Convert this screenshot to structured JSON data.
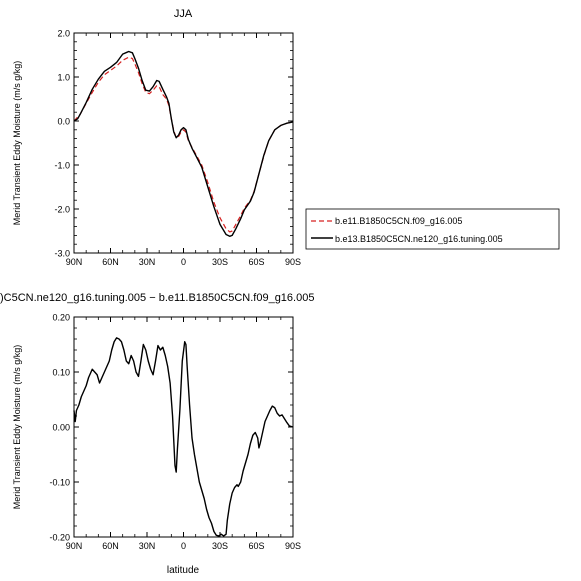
{
  "charts": [
    {
      "type": "line",
      "title": "JJA",
      "xlabel": "",
      "ylabel": "Merid Transient Eddy Moisture (m/s g/kg)",
      "x_ticks": [
        "90N",
        "60N",
        "30N",
        "0",
        "30S",
        "60S",
        "90S"
      ],
      "y_ticks": [
        "2.0",
        "1.0",
        "0.0",
        "-1.0",
        "-2.0",
        "-3.0"
      ],
      "xlim": [
        -90,
        90
      ],
      "ylim": [
        -3.0,
        2.0
      ],
      "x_direction": "90N to 90S left to right",
      "legend": {
        "placement": "right",
        "entries": [
          "b.e11.B1850C5CN.f09_g16.005",
          "b.e13.B1850C5CN.ne120_g16.tuning.005"
        ]
      },
      "series": [
        {
          "name": "b.e11.B1850C5CN.f09_g16.005",
          "color": "#d62020",
          "dash": "dashed",
          "points": [
            [
              -90,
              0.0
            ],
            [
              -85,
              0.15
            ],
            [
              -80,
              0.4
            ],
            [
              -75,
              0.65
            ],
            [
              -70,
              0.88
            ],
            [
              -65,
              1.05
            ],
            [
              -60,
              1.15
            ],
            [
              -55,
              1.25
            ],
            [
              -50,
              1.38
            ],
            [
              -45,
              1.45
            ],
            [
              -42,
              1.42
            ],
            [
              -40,
              1.3
            ],
            [
              -37,
              1.1
            ],
            [
              -34,
              0.85
            ],
            [
              -31,
              0.65
            ],
            [
              -28,
              0.62
            ],
            [
              -25,
              0.7
            ],
            [
              -22,
              0.8
            ],
            [
              -20,
              0.78
            ],
            [
              -17,
              0.6
            ],
            [
              -14,
              0.5
            ],
            [
              -12,
              0.35
            ],
            [
              -10,
              0.05
            ],
            [
              -8,
              -0.22
            ],
            [
              -6,
              -0.38
            ],
            [
              -4,
              -0.35
            ],
            [
              -2,
              -0.25
            ],
            [
              0,
              -0.2
            ],
            [
              2,
              -0.25
            ],
            [
              4,
              -0.45
            ],
            [
              7,
              -0.6
            ],
            [
              10,
              -0.75
            ],
            [
              15,
              -1.0
            ],
            [
              20,
              -1.4
            ],
            [
              25,
              -1.85
            ],
            [
              30,
              -2.2
            ],
            [
              35,
              -2.45
            ],
            [
              38,
              -2.52
            ],
            [
              40,
              -2.5
            ],
            [
              43,
              -2.35
            ],
            [
              47,
              -2.15
            ],
            [
              50,
              -1.98
            ],
            [
              55,
              -1.8
            ],
            [
              58,
              -1.6
            ],
            [
              62,
              -1.2
            ],
            [
              66,
              -0.8
            ],
            [
              70,
              -0.45
            ],
            [
              75,
              -0.2
            ],
            [
              80,
              -0.1
            ],
            [
              85,
              -0.05
            ],
            [
              90,
              -0.02
            ]
          ]
        },
        {
          "name": "b.e13.B1850C5CN.ne120_g16.tuning.005",
          "color": "#000000",
          "dash": "solid",
          "points": [
            [
              -90,
              0.0
            ],
            [
              -87,
              0.05
            ],
            [
              -85,
              0.15
            ],
            [
              -80,
              0.42
            ],
            [
              -75,
              0.72
            ],
            [
              -70,
              0.95
            ],
            [
              -65,
              1.13
            ],
            [
              -60,
              1.22
            ],
            [
              -55,
              1.33
            ],
            [
              -50,
              1.52
            ],
            [
              -45,
              1.58
            ],
            [
              -42,
              1.55
            ],
            [
              -40,
              1.42
            ],
            [
              -37,
              1.2
            ],
            [
              -34,
              0.92
            ],
            [
              -31,
              0.7
            ],
            [
              -28,
              0.68
            ],
            [
              -25,
              0.78
            ],
            [
              -22,
              0.92
            ],
            [
              -20,
              0.9
            ],
            [
              -17,
              0.72
            ],
            [
              -14,
              0.55
            ],
            [
              -12,
              0.4
            ],
            [
              -10,
              0.05
            ],
            [
              -8,
              -0.25
            ],
            [
              -6,
              -0.38
            ],
            [
              -4,
              -0.32
            ],
            [
              -2,
              -0.2
            ],
            [
              0,
              -0.15
            ],
            [
              2,
              -0.2
            ],
            [
              4,
              -0.42
            ],
            [
              7,
              -0.62
            ],
            [
              10,
              -0.78
            ],
            [
              15,
              -1.05
            ],
            [
              20,
              -1.5
            ],
            [
              25,
              -1.95
            ],
            [
              30,
              -2.35
            ],
            [
              35,
              -2.58
            ],
            [
              38,
              -2.62
            ],
            [
              40,
              -2.6
            ],
            [
              43,
              -2.45
            ],
            [
              47,
              -2.22
            ],
            [
              50,
              -2.02
            ],
            [
              55,
              -1.82
            ],
            [
              58,
              -1.62
            ],
            [
              62,
              -1.2
            ],
            [
              66,
              -0.78
            ],
            [
              70,
              -0.45
            ],
            [
              75,
              -0.2
            ],
            [
              80,
              -0.1
            ],
            [
              85,
              -0.05
            ],
            [
              90,
              -0.02
            ]
          ]
        }
      ]
    },
    {
      "type": "line",
      "title": ")C5CN.ne120_g16.tuning.005 − b.e11.B1850C5CN.f09_g16.005",
      "xlabel": "latitude",
      "ylabel": "Merid Transient Eddy Moisture (m/s g/kg)",
      "x_ticks": [
        "90N",
        "60N",
        "30N",
        "0",
        "30S",
        "60S",
        "90S"
      ],
      "y_ticks": [
        "0.20",
        "0.10",
        "0.00",
        "-0.10",
        "-0.20"
      ],
      "xlim": [
        -90,
        90
      ],
      "ylim": [
        -0.2,
        0.2
      ],
      "x_direction": "90N to 90S left to right",
      "series": [
        {
          "name": "",
          "color": "#000000",
          "dash": "solid",
          "points": [
            [
              -90,
              0.03
            ],
            [
              -89,
              0.01
            ],
            [
              -88,
              0.03
            ],
            [
              -86,
              0.04
            ],
            [
              -84,
              0.055
            ],
            [
              -82,
              0.065
            ],
            [
              -80,
              0.075
            ],
            [
              -78,
              0.09
            ],
            [
              -76,
              0.1
            ],
            [
              -75,
              0.105
            ],
            [
              -73,
              0.1
            ],
            [
              -71,
              0.095
            ],
            [
              -69,
              0.08
            ],
            [
              -67,
              0.09
            ],
            [
              -65,
              0.1
            ],
            [
              -63,
              0.11
            ],
            [
              -61,
              0.12
            ],
            [
              -59,
              0.14
            ],
            [
              -57,
              0.155
            ],
            [
              -55,
              0.162
            ],
            [
              -53,
              0.16
            ],
            [
              -51,
              0.155
            ],
            [
              -49,
              0.14
            ],
            [
              -47,
              0.12
            ],
            [
              -45,
              0.115
            ],
            [
              -43,
              0.13
            ],
            [
              -41,
              0.12
            ],
            [
              -39,
              0.1
            ],
            [
              -37,
              0.092
            ],
            [
              -35,
              0.12
            ],
            [
              -33,
              0.15
            ],
            [
              -31,
              0.14
            ],
            [
              -29,
              0.12
            ],
            [
              -27,
              0.105
            ],
            [
              -25,
              0.095
            ],
            [
              -23,
              0.12
            ],
            [
              -21,
              0.148
            ],
            [
              -19,
              0.14
            ],
            [
              -17,
              0.145
            ],
            [
              -15,
              0.13
            ],
            [
              -13,
              0.11
            ],
            [
              -11,
              0.08
            ],
            [
              -9,
              0.02
            ],
            [
              -7,
              -0.07
            ],
            [
              -6,
              -0.082
            ],
            [
              -5,
              -0.04
            ],
            [
              -3,
              0.03
            ],
            [
              -1,
              0.12
            ],
            [
              1,
              0.155
            ],
            [
              2,
              0.15
            ],
            [
              3,
              0.11
            ],
            [
              5,
              0.04
            ],
            [
              7,
              -0.02
            ],
            [
              9,
              -0.05
            ],
            [
              11,
              -0.075
            ],
            [
              13,
              -0.1
            ],
            [
              15,
              -0.115
            ],
            [
              17,
              -0.13
            ],
            [
              19,
              -0.15
            ],
            [
              21,
              -0.165
            ],
            [
              23,
              -0.175
            ],
            [
              25,
              -0.19
            ],
            [
              27,
              -0.197
            ],
            [
              29,
              -0.198
            ],
            [
              31,
              -0.195
            ],
            [
              33,
              -0.198
            ],
            [
              35,
              -0.195
            ],
            [
              36,
              -0.17
            ],
            [
              38,
              -0.14
            ],
            [
              40,
              -0.12
            ],
            [
              42,
              -0.11
            ],
            [
              44,
              -0.105
            ],
            [
              45,
              -0.108
            ],
            [
              47,
              -0.1
            ],
            [
              49,
              -0.08
            ],
            [
              51,
              -0.065
            ],
            [
              53,
              -0.05
            ],
            [
              55,
              -0.03
            ],
            [
              57,
              -0.015
            ],
            [
              59,
              -0.01
            ],
            [
              61,
              -0.02
            ],
            [
              62,
              -0.038
            ],
            [
              63,
              -0.03
            ],
            [
              65,
              -0.01
            ],
            [
              67,
              0.01
            ],
            [
              69,
              0.02
            ],
            [
              71,
              0.03
            ],
            [
              73,
              0.038
            ],
            [
              75,
              0.035
            ],
            [
              77,
              0.025
            ],
            [
              79,
              0.02
            ],
            [
              81,
              0.022
            ],
            [
              83,
              0.015
            ],
            [
              85,
              0.008
            ],
            [
              87,
              0.002
            ],
            [
              90,
              0.0
            ]
          ]
        }
      ]
    }
  ]
}
